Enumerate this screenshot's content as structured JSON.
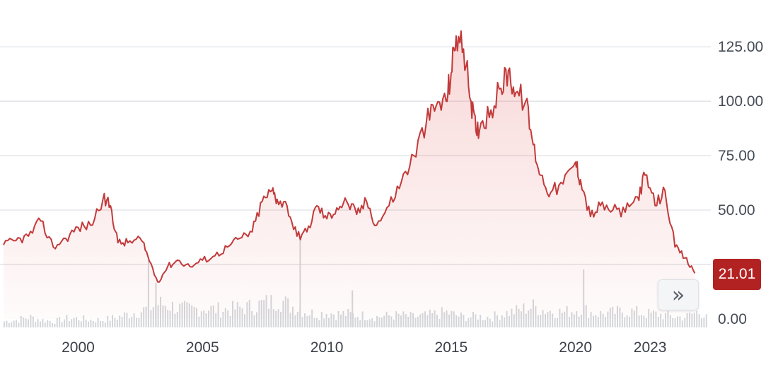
{
  "chart_data": {
    "type": "line",
    "x": [
      1997.0,
      1997.5,
      1998.0,
      1998.5,
      1999.0,
      1999.5,
      2000.0,
      2000.5,
      2001.0,
      2001.3,
      2001.6,
      2002.0,
      2002.5,
      2002.8,
      2003.2,
      2003.6,
      2004.0,
      2004.5,
      2005.0,
      2005.5,
      2006.0,
      2006.5,
      2007.0,
      2007.4,
      2007.8,
      2008.0,
      2008.4,
      2008.8,
      2009.2,
      2009.6,
      2010.0,
      2010.4,
      2010.8,
      2011.2,
      2011.6,
      2012.0,
      2012.5,
      2013.0,
      2013.5,
      2014.0,
      2014.4,
      2014.8,
      2015.0,
      2015.2,
      2015.5,
      2015.8,
      2016.0,
      2016.2,
      2016.6,
      2017.0,
      2017.3,
      2017.6,
      2018.0,
      2018.3,
      2018.6,
      2019.0,
      2019.5,
      2020.0,
      2020.2,
      2020.6,
      2021.0,
      2021.5,
      2022.0,
      2022.5,
      2022.8,
      2023.2,
      2023.6,
      2024.0,
      2024.4,
      2024.8
    ],
    "y": [
      34,
      36,
      38,
      45,
      33,
      37,
      42,
      43,
      55,
      52,
      35,
      35,
      37,
      29,
      17,
      24,
      27,
      24,
      27,
      29,
      33,
      37,
      40,
      54,
      59,
      55,
      52,
      38,
      40,
      52,
      46,
      51,
      54,
      48,
      54,
      43,
      52,
      63,
      75,
      90,
      98,
      100,
      113,
      130,
      124,
      100,
      86,
      90,
      96,
      106,
      114,
      104,
      100,
      80,
      66,
      58,
      62,
      72,
      64,
      47,
      52,
      50,
      49,
      56,
      66,
      52,
      59,
      33,
      28,
      21
    ],
    "volume": [
      4,
      5,
      7,
      5,
      4,
      6,
      6,
      5,
      5,
      6,
      7,
      9,
      11,
      13,
      16,
      15,
      13,
      12,
      13,
      12,
      12,
      13,
      14,
      16,
      17,
      20,
      15,
      13,
      10,
      9,
      10,
      9,
      9,
      8,
      8,
      7,
      8,
      8,
      7,
      8,
      9,
      10,
      9,
      8,
      7,
      7,
      8,
      7,
      7,
      9,
      10,
      11,
      13,
      14,
      12,
      11,
      10,
      12,
      13,
      10,
      9,
      10,
      11,
      10,
      9,
      9,
      8,
      7,
      7,
      10
    ],
    "spikes": [
      [
        2002.8,
        46
      ],
      [
        2008.9,
        60
      ],
      [
        2020.3,
        39
      ],
      [
        2003.1,
        30
      ],
      [
        2011.0,
        25
      ]
    ],
    "ylim": [
      0,
      140
    ],
    "xlim": [
      1997.0,
      2025.3
    ],
    "yticks": [
      "125.00",
      "100.00",
      "75.00",
      "50.00",
      "0.00"
    ],
    "ytick_values": [
      125,
      100,
      75,
      50,
      0
    ],
    "xticks": [
      "2000",
      "2005",
      "2010",
      "2015",
      "2020",
      "2023"
    ],
    "xtick_values": [
      2000,
      2005,
      2010,
      2015,
      2020,
      2023
    ],
    "last_value": "21.01",
    "grid": true,
    "title": "",
    "xlabel": "",
    "ylabel": ""
  },
  "colors": {
    "line": "#c23a3a",
    "badge": "#b32222",
    "volume": "#d4d6da",
    "grid": "#dcdfe4"
  },
  "controls": {
    "scroll_right_icon": "double-chevron-right-icon",
    "scroll_right_glyph": "»"
  }
}
